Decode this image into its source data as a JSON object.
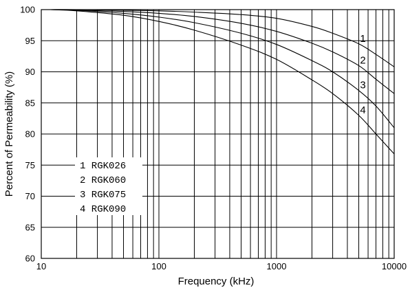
{
  "chart_data": {
    "type": "line",
    "title": "",
    "xlabel": "Frequency (kHz)",
    "ylabel": "Percent of Permeability (%)",
    "x_scale": "log",
    "xlim": [
      10,
      10000
    ],
    "ylim": [
      60,
      100
    ],
    "x_ticks": [
      {
        "value": 10,
        "label": "10"
      },
      {
        "value": 100,
        "label": "100"
      },
      {
        "value": 1000,
        "label": "1000"
      },
      {
        "value": 10000,
        "label": "10000"
      }
    ],
    "y_ticks": [
      {
        "value": 60,
        "label": "60"
      },
      {
        "value": 65,
        "label": "65"
      },
      {
        "value": 70,
        "label": "70"
      },
      {
        "value": 75,
        "label": "75"
      },
      {
        "value": 80,
        "label": "80"
      },
      {
        "value": 85,
        "label": "85"
      },
      {
        "value": 90,
        "label": "90"
      },
      {
        "value": 95,
        "label": "95"
      },
      {
        "value": 100,
        "label": "100"
      }
    ],
    "grid": true,
    "legend_position": "lower-left",
    "legend": [
      "1 RGK026",
      "2 RGK060",
      "3 RGK075",
      "4 RGK090"
    ],
    "series": [
      {
        "name": "RGK026",
        "curve_label": "1",
        "x": [
          12,
          20,
          50,
          100,
          200,
          500,
          1000,
          2000,
          3000,
          5000,
          7000,
          10000
        ],
        "values": [
          100,
          100,
          99.9,
          99.8,
          99.6,
          99.2,
          98.6,
          97.3,
          96.2,
          94.5,
          92.8,
          90.8
        ]
      },
      {
        "name": "RGK060",
        "curve_label": "2",
        "x": [
          12,
          20,
          50,
          100,
          200,
          500,
          1000,
          2000,
          3000,
          5000,
          7000,
          10000
        ],
        "values": [
          100,
          99.9,
          99.7,
          99.4,
          98.9,
          97.8,
          96.5,
          94.6,
          93.2,
          91.0,
          88.8,
          86.5
        ]
      },
      {
        "name": "RGK075",
        "curve_label": "3",
        "x": [
          12,
          20,
          50,
          100,
          200,
          500,
          1000,
          2000,
          3000,
          5000,
          7000,
          10000
        ],
        "values": [
          100,
          99.9,
          99.4,
          98.8,
          97.9,
          96.2,
          94.4,
          91.8,
          90.0,
          87.0,
          84.5,
          81.0
        ]
      },
      {
        "name": "RGK090",
        "curve_label": "4",
        "x": [
          12,
          20,
          50,
          100,
          200,
          500,
          1000,
          2000,
          3000,
          5000,
          7000,
          10000
        ],
        "values": [
          100,
          99.8,
          99.1,
          98.1,
          96.7,
          94.3,
          92.0,
          88.7,
          86.5,
          83.0,
          80.0,
          76.8
        ]
      }
    ]
  }
}
